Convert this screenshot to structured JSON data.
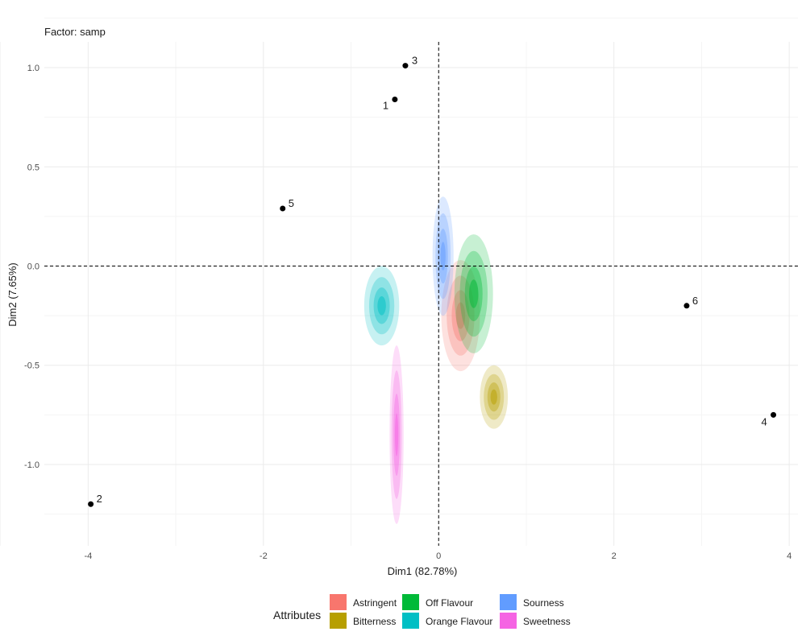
{
  "chart_data": {
    "type": "scatter",
    "subtitle": "Factor: samp",
    "xlabel": "Dim1 (82.78%)",
    "ylabel": "Dim2 (7.65%)",
    "xlim": [
      -4.5,
      4.1
    ],
    "ylim": [
      -1.41,
      1.13
    ],
    "x_ticks": [
      -4,
      -2,
      0,
      2,
      4
    ],
    "y_ticks": [
      1.0,
      0.5,
      0.0,
      -0.5,
      -1.0
    ],
    "x_tick_labels": [
      "-4",
      "-2",
      "0",
      "2",
      "4"
    ],
    "y_tick_labels": [
      "1.0",
      "0.5",
      "0.0",
      "-0.5",
      "-1.0"
    ],
    "grid": true,
    "reference_lines": {
      "x": 0,
      "y": 0,
      "style": "dashed"
    },
    "points": [
      {
        "label": "1",
        "x": -0.5,
        "y": 0.84
      },
      {
        "label": "2",
        "x": -3.97,
        "y": -1.2
      },
      {
        "label": "3",
        "x": -0.38,
        "y": 1.01
      },
      {
        "label": "4",
        "x": 3.82,
        "y": -0.75
      },
      {
        "label": "5",
        "x": -1.78,
        "y": 0.29
      },
      {
        "label": "6",
        "x": 2.83,
        "y": -0.2
      }
    ],
    "legend": {
      "title": "Attributes",
      "position": "bottom",
      "entries": [
        {
          "name": "Astringent",
          "color": "#F8766D"
        },
        {
          "name": "Bitterness",
          "color": "#B79F00"
        },
        {
          "name": "Off Flavour",
          "color": "#00BA38"
        },
        {
          "name": "Orange Flavour",
          "color": "#00BFC4"
        },
        {
          "name": "Sourness",
          "color": "#619CFF"
        },
        {
          "name": "Sweetness",
          "color": "#F564E3"
        }
      ]
    },
    "density_regions": [
      {
        "attribute": "Astringent",
        "color": "#F8766D",
        "center_x": 0.25,
        "center_y": -0.25,
        "spread_x": 0.22,
        "spread_y": 0.28
      },
      {
        "attribute": "Bitterness",
        "color": "#B79F00",
        "center_x": 0.63,
        "center_y": -0.66,
        "spread_x": 0.16,
        "spread_y": 0.16
      },
      {
        "attribute": "Off Flavour",
        "color": "#00BA38",
        "center_x": 0.4,
        "center_y": -0.14,
        "spread_x": 0.22,
        "spread_y": 0.3
      },
      {
        "attribute": "Orange Flavour",
        "color": "#00BFC4",
        "center_x": -0.65,
        "center_y": -0.2,
        "spread_x": 0.2,
        "spread_y": 0.2
      },
      {
        "attribute": "Sourness",
        "color": "#619CFF",
        "center_x": 0.05,
        "center_y": 0.05,
        "spread_x": 0.12,
        "spread_y": 0.3
      },
      {
        "attribute": "Sweetness",
        "color": "#F564E3",
        "center_x": -0.48,
        "center_y": -0.85,
        "spread_x": 0.08,
        "spread_y": 0.45
      }
    ]
  }
}
